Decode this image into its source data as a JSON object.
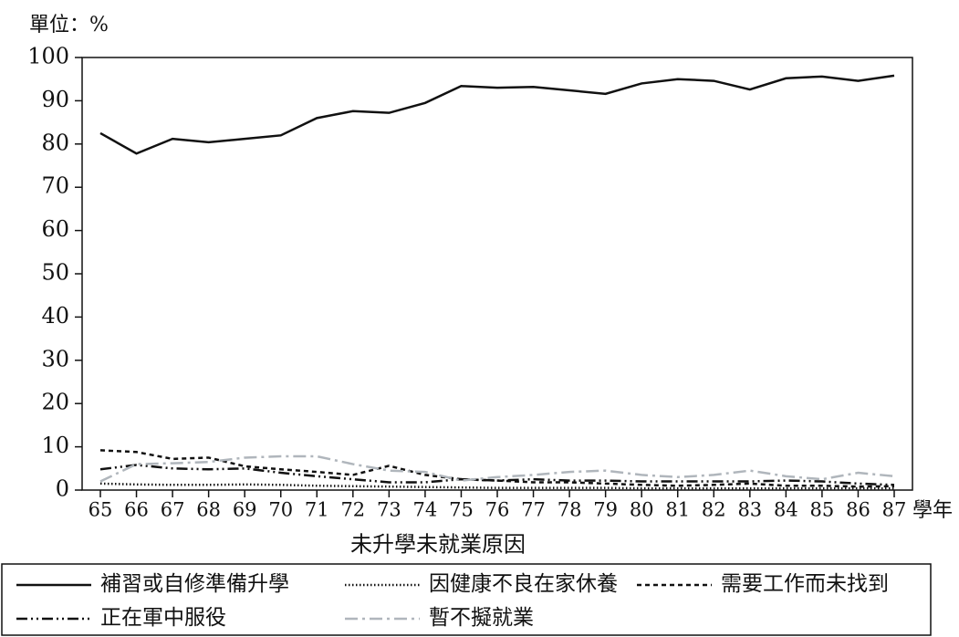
{
  "chart_data": {
    "type": "line",
    "y_unit": "單位：%",
    "x_unit": "學年",
    "legend_title": "未升學未就業原因",
    "categories": [
      "65",
      "66",
      "67",
      "68",
      "69",
      "70",
      "71",
      "72",
      "73",
      "74",
      "75",
      "76",
      "77",
      "78",
      "79",
      "80",
      "81",
      "82",
      "83",
      "84",
      "85",
      "86",
      "87"
    ],
    "ylim": [
      0,
      100
    ],
    "yticks": [
      0,
      10,
      20,
      30,
      40,
      50,
      60,
      70,
      80,
      90,
      100
    ],
    "series": [
      {
        "name": "補習或自修準備升學",
        "color": "#111111",
        "style": "solid",
        "values": [
          82.5,
          77.8,
          81.2,
          80.4,
          81.2,
          82,
          86,
          87.6,
          87.2,
          89.5,
          93.4,
          93,
          93.2,
          92.4,
          91.6,
          94,
          95,
          94.6,
          92.6,
          95.2,
          95.6,
          94.6,
          95.8
        ]
      },
      {
        "name": "因健康不良在家休養",
        "color": "#111111",
        "style": "dotted",
        "values": [
          1.5,
          1.3,
          1.2,
          1.2,
          1.3,
          1.2,
          1.0,
          0.9,
          0.8,
          0.7,
          0.6,
          0.5,
          0.5,
          0.5,
          0.5,
          0.4,
          0.4,
          0.4,
          0.4,
          0.4,
          0.4,
          0.4,
          0.4
        ]
      },
      {
        "name": "需要工作而未找到",
        "color": "#111111",
        "style": "dashed",
        "values": [
          9.2,
          8.8,
          7.2,
          7.5,
          5.5,
          4.8,
          4.2,
          3.5,
          5.6,
          3.5,
          2.5,
          2.2,
          1.8,
          1.8,
          1.5,
          1.2,
          1.0,
          1.2,
          1.5,
          1.0,
          1.0,
          0.8,
          0.9
        ]
      },
      {
        "name": "正在軍中服役",
        "color": "#111111",
        "style": "dashdotdot",
        "values": [
          4.8,
          5.8,
          5.0,
          4.8,
          5.0,
          4.0,
          3.2,
          2.5,
          1.8,
          1.8,
          2.5,
          2.2,
          2.5,
          2.2,
          2.2,
          2.0,
          2.0,
          2.0,
          2.0,
          2.2,
          2.0,
          1.5,
          1.2
        ]
      },
      {
        "name": "暫不擬就業",
        "color": "#b0b6bc",
        "style": "dashdot",
        "values": [
          2.0,
          6.0,
          6.2,
          6.5,
          7.5,
          7.8,
          7.8,
          6.0,
          4.5,
          4.2,
          2.2,
          3.0,
          3.5,
          4.2,
          4.5,
          3.5,
          3.0,
          3.5,
          4.5,
          3.2,
          2.5,
          4.0,
          3.2
        ]
      }
    ]
  }
}
